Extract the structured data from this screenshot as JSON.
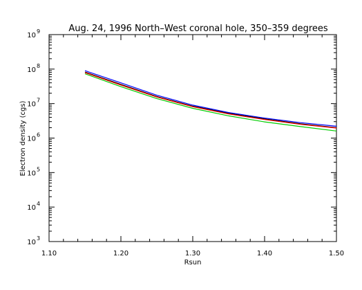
{
  "chart_data": {
    "type": "line",
    "title": "Aug. 24, 1996 North–West coronal hole, 350–359 degrees",
    "xlabel": "Rsun",
    "ylabel": "Electron density (cgs)",
    "xlim": [
      1.1,
      1.5
    ],
    "ylim": [
      1000,
      1000000000
    ],
    "yscale": "log",
    "x_ticks": [
      "1.10",
      "1.20",
      "1.30",
      "1.40",
      "1.50"
    ],
    "y_ticks": [
      {
        "base": "10",
        "exp": "3"
      },
      {
        "base": "10",
        "exp": "4"
      },
      {
        "base": "10",
        "exp": "5"
      },
      {
        "base": "10",
        "exp": "6"
      },
      {
        "base": "10",
        "exp": "7"
      },
      {
        "base": "10",
        "exp": "8"
      },
      {
        "base": "10",
        "exp": "9"
      }
    ],
    "x": [
      1.15,
      1.2,
      1.25,
      1.3,
      1.35,
      1.4,
      1.45,
      1.5
    ],
    "series": [
      {
        "color": "#0000ff",
        "values": [
          90000000,
          40000000,
          17500000,
          9000000,
          5500000,
          3800000,
          2800000,
          2200000
        ]
      },
      {
        "color": "#000000",
        "values": [
          82000000,
          36000000,
          16000000,
          8400000,
          5200000,
          3600000,
          2600000,
          2000000
        ]
      },
      {
        "color": "#ff0000",
        "values": [
          79000000,
          34500000,
          15500000,
          8100000,
          5000000,
          3450000,
          2500000,
          1950000
        ]
      },
      {
        "color": "#00cc00",
        "values": [
          73000000,
          31000000,
          14000000,
          7300000,
          4400000,
          2950000,
          2150000,
          1600000
        ]
      }
    ]
  }
}
